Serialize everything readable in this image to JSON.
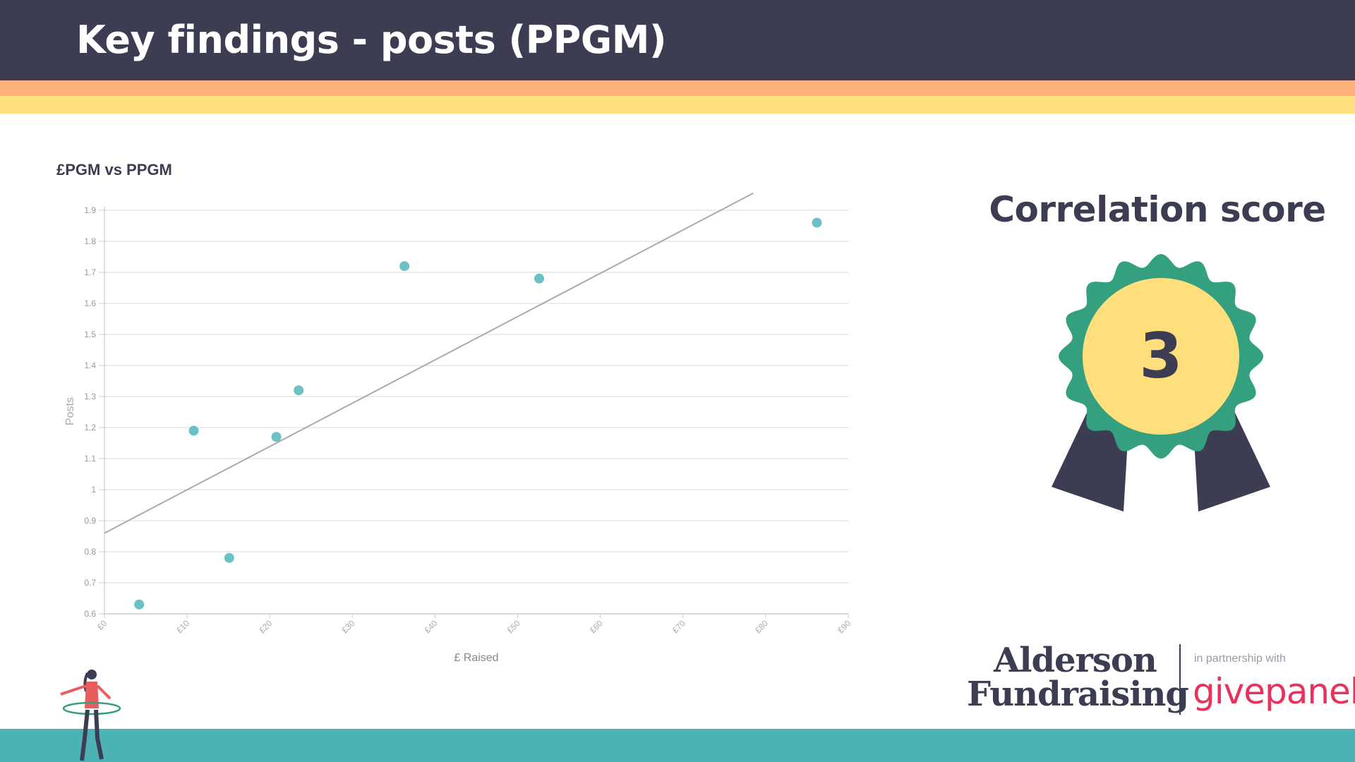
{
  "slide": {
    "title": "Key findings - posts (PPGM)",
    "colors": {
      "header": "#3c3d53",
      "stripe_orange": "#ffb07d",
      "stripe_yellow": "#ffde7c",
      "footer_band": "#4cb2b4",
      "point": "#6bc1c6",
      "trendline": "#aaaaaa"
    }
  },
  "chart_data": {
    "type": "scatter",
    "title": "£PGM vs PPGM",
    "xlabel": "£ Raised",
    "ylabel": "Posts",
    "xlim": [
      0,
      90
    ],
    "ylim": [
      0.6,
      1.9
    ],
    "x_ticks": [
      "£0",
      "£10",
      "£20",
      "£30",
      "£40",
      "£50",
      "£60",
      "£70",
      "£80",
      "£90"
    ],
    "y_ticks": [
      "0.6",
      "0.7",
      "0.8",
      "0.9",
      "1",
      "1.1",
      "1.2",
      "1.3",
      "1.4",
      "1.5",
      "1.6",
      "1.7",
      "1.8",
      "1.9"
    ],
    "grid": true,
    "points": [
      {
        "x": 4.2,
        "y": 0.63
      },
      {
        "x": 10.8,
        "y": 1.19
      },
      {
        "x": 15.1,
        "y": 0.78
      },
      {
        "x": 20.8,
        "y": 1.17
      },
      {
        "x": 23.5,
        "y": 1.32
      },
      {
        "x": 36.3,
        "y": 1.72
      },
      {
        "x": 52.6,
        "y": 1.68
      },
      {
        "x": 86.2,
        "y": 1.86
      }
    ],
    "trendline": {
      "x": [
        0,
        78.5
      ],
      "y": [
        0.86,
        1.955
      ]
    }
  },
  "score": {
    "title": "Correlation score",
    "value": "3",
    "colors": {
      "rosette": "#35a07f",
      "center": "#ffde7c",
      "ribbon": "#3c3d53"
    }
  },
  "branding": {
    "logo_line1": "Alderson",
    "logo_line2": "Fundraising",
    "partner_text": "in partnership with",
    "partner_name": "givepanel"
  }
}
